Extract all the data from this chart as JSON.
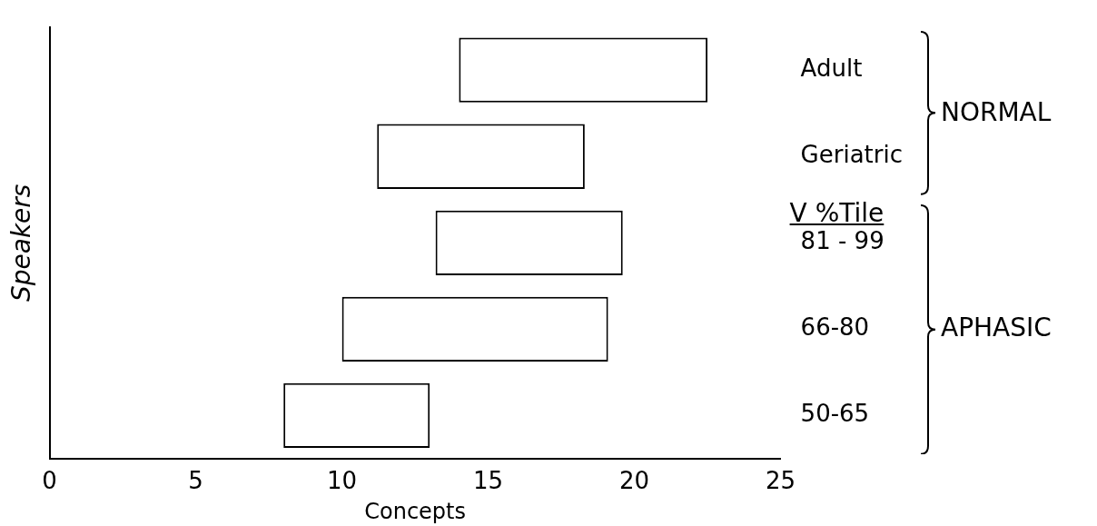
{
  "chart_data": {
    "type": "bar",
    "orientation": "horizontal",
    "xlabel": "Concepts",
    "ylabel": "Speakers",
    "categories": [
      "Adult",
      "Geriatric",
      "81 - 99",
      "66-80",
      "50-65"
    ],
    "base": [
      14,
      11.2,
      13.2,
      10,
      8
    ],
    "values": [
      8.5,
      7.1,
      6.4,
      9.1,
      5
    ],
    "color": "#ffffff",
    "xlim": [
      0,
      25
    ],
    "xticks": [
      0,
      5,
      10,
      15,
      20,
      25
    ],
    "annotations": [
      "V %Tile",
      "NORMAL",
      "APHASIC"
    ],
    "grid": false,
    "legend": false
  }
}
